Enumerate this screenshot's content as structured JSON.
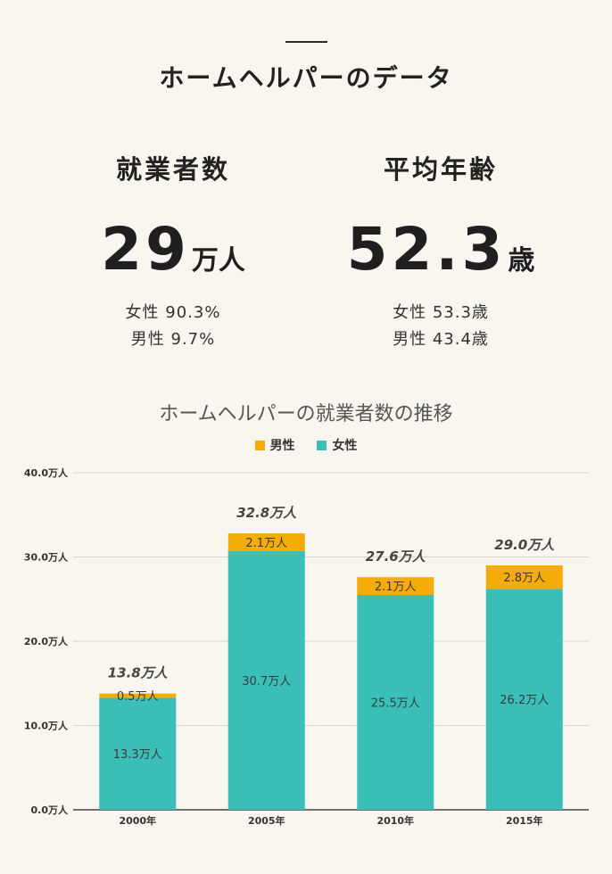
{
  "header": {
    "title": "ホームヘルパーのデータ"
  },
  "stats": {
    "employees": {
      "heading": "就業者数",
      "value": "29",
      "unit": "万人",
      "female": "女性 90.3%",
      "male": "男性 9.7%"
    },
    "age": {
      "heading": "平均年齢",
      "value": "52.3",
      "unit": "歳",
      "female": "女性 53.3歳",
      "male": "男性 43.4歳"
    }
  },
  "colors": {
    "male": "#f5ac07",
    "female": "#3abfb8",
    "grid": "#d7d4cc",
    "axis": "#444444"
  },
  "chart_data": {
    "type": "bar",
    "stacked": true,
    "title": "ホームヘルパーの就業者数の推移",
    "categories": [
      "2000年",
      "2005年",
      "2010年",
      "2015年"
    ],
    "series": [
      {
        "name": "女性",
        "values": [
          13.3,
          30.7,
          25.5,
          26.2
        ],
        "labels": [
          "13.3万人",
          "30.7万人",
          "25.5万人",
          "26.2万人"
        ]
      },
      {
        "name": "男性",
        "values": [
          0.5,
          2.1,
          2.1,
          2.8
        ],
        "labels": [
          "0.5万人",
          "2.1万人",
          "2.1万人",
          "2.8万人"
        ]
      }
    ],
    "totals": [
      13.8,
      32.8,
      27.6,
      29.0
    ],
    "total_labels": [
      "13.8万人",
      "32.8万人",
      "27.6万人",
      "29.0万人"
    ],
    "legend": [
      "男性",
      "女性"
    ],
    "legend_position": "top",
    "ylim": [
      0,
      40
    ],
    "yticks": [
      "0.0万人",
      "10.0万人",
      "20.0万人",
      "30.0万人",
      "40.0万人"
    ],
    "grid": true
  }
}
